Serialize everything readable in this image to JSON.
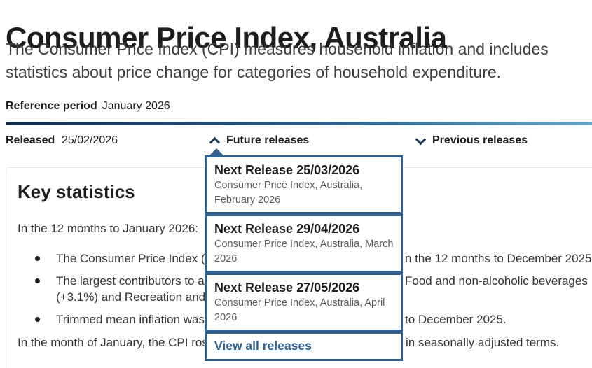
{
  "page": {
    "title": "Consumer Price Index, Australia",
    "subtitle_line1": "The Consumer Price Index (CPI) measures household inflation and includes",
    "subtitle_line2": "statistics about price change for categories of household expenditure.",
    "reference_period_label": "Reference period",
    "reference_period_value": "January 2026",
    "released_label": "Released",
    "released_value": "25/02/2026",
    "future_releases_label": "Future releases",
    "previous_releases_label": "Previous releases"
  },
  "future_releases_dropdown": {
    "items": [
      {
        "title": "Next Release 25/03/2026",
        "desc_line1": "Consumer Price Index, Australia,",
        "desc_line2": "February 2026"
      },
      {
        "title": "Next Release 29/04/2026",
        "desc_line1": "Consumer Price Index, Australia, March",
        "desc_line2": "2026"
      },
      {
        "title": "Next Release 27/05/2026",
        "desc_line1": "Consumer Price Index, Australia, April",
        "desc_line2": "2026"
      }
    ],
    "view_all_label": "View all releases"
  },
  "key_statistics": {
    "heading": "Key statistics",
    "intro": "In the 12 months to January 2026:",
    "bullets": [
      {
        "left": "The Consumer Price Index (C",
        "right": "n the 12 months to December 2025."
      },
      {
        "left": "The largest contributors to a",
        "right": "Food and non-alcoholic beverages",
        "left2": "(+3.1%) and Recreation and c"
      },
      {
        "left": "Trimmed mean inflation was",
        "right": "to December 2025."
      }
    ],
    "closing_left": "In the month of January, the CPI rose",
    "closing_right": "in seasonally adjusted terms."
  },
  "colors": {
    "accent_blue": "#31618f",
    "chevron_navy": "#1c3a5c",
    "rule_gradient_start": "#16294a",
    "rule_gradient_end": "#68a5c3"
  }
}
